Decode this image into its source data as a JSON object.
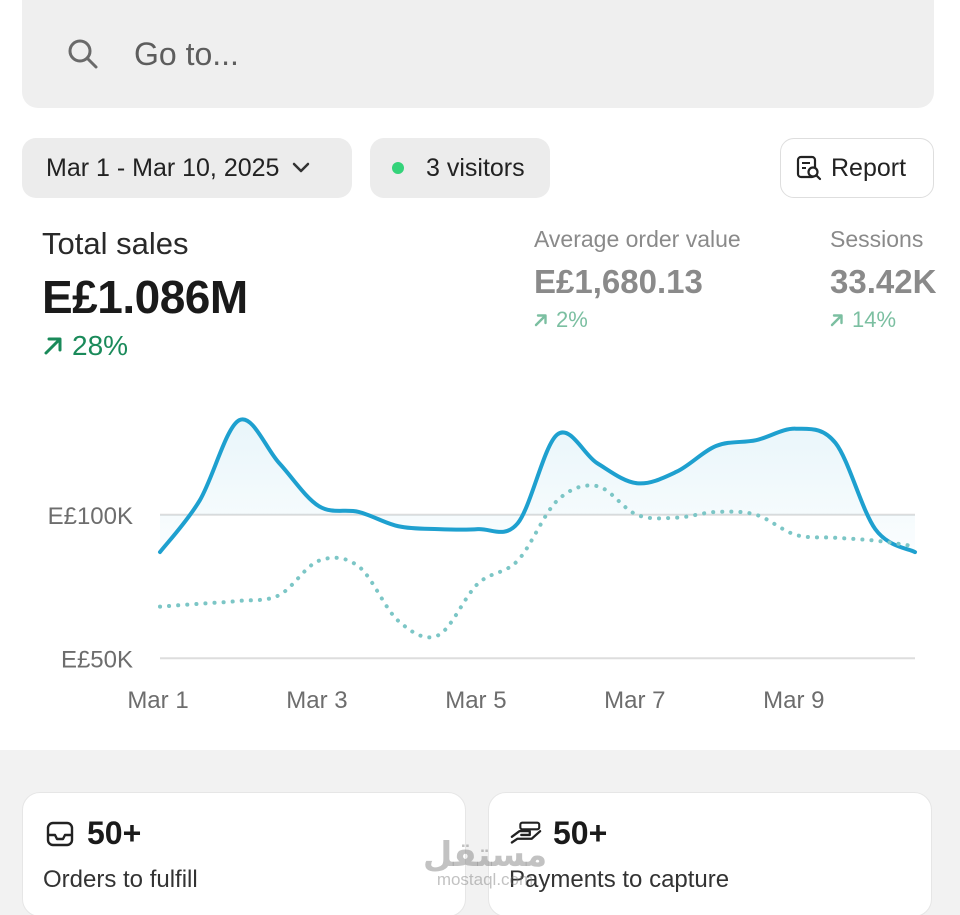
{
  "search": {
    "placeholder": "Go to..."
  },
  "filters": {
    "date_range": "Mar 1 - Mar 10, 2025",
    "visitors": "3 visitors",
    "report_label": "Report"
  },
  "metrics": {
    "total_sales": {
      "label": "Total sales",
      "value": "E£1.086M",
      "change": "28%"
    },
    "avg_order_value": {
      "label": "Average order value",
      "value": "E£1,680.13",
      "change": "2%"
    },
    "sessions": {
      "label": "Sessions",
      "value": "33.42K",
      "change": "14%"
    }
  },
  "chart_data": {
    "type": "line",
    "ytick_labels": [
      "E£100K",
      "E£50K"
    ],
    "yticks": [
      100,
      50
    ],
    "ylim": [
      25,
      140
    ],
    "xlim": [
      1,
      10.5
    ],
    "x_tick_labels": [
      "Mar 1",
      "Mar 3",
      "Mar 5",
      "Mar 7",
      "Mar 9"
    ],
    "x_ticks": [
      1,
      3,
      5,
      7,
      9
    ],
    "grid": true,
    "series": [
      {
        "style": "solid",
        "color": "#1ea0cf",
        "x": [
          1,
          1.5,
          2,
          2.5,
          3,
          3.5,
          4,
          4.5,
          5,
          5.5,
          6,
          6.5,
          7,
          7.5,
          8,
          8.5,
          9,
          9.5,
          10,
          10.5
        ],
        "values": [
          87,
          105,
          133,
          118,
          103,
          101,
          96,
          95,
          95,
          97,
          128,
          118,
          111,
          115,
          124,
          126,
          130,
          125,
          95,
          87
        ]
      },
      {
        "style": "dotted",
        "color": "#7cc6c6",
        "x": [
          1,
          1.5,
          2,
          2.5,
          3,
          3.5,
          4,
          4.5,
          5,
          5.5,
          6,
          6.5,
          7,
          7.5,
          8,
          8.5,
          9,
          9.5,
          10,
          10.5
        ],
        "values": [
          68,
          69,
          70,
          72,
          84,
          82,
          63,
          58,
          76,
          84,
          105,
          110,
          100,
          99,
          101,
          100,
          93,
          92,
          91,
          89
        ]
      }
    ]
  },
  "cards": [
    {
      "count": "50+",
      "label": "Orders to fulfill",
      "icon": "inbox-icon"
    },
    {
      "count": "50+",
      "label": "Payments to capture",
      "icon": "payment-hand-icon"
    }
  ],
  "watermark": {
    "arabic": "مستقل",
    "latin": "mostaql.com"
  },
  "colors": {
    "accent": "#1ea0cf",
    "positive": "#1a8a5a",
    "visitor_dot": "#34d37a"
  }
}
